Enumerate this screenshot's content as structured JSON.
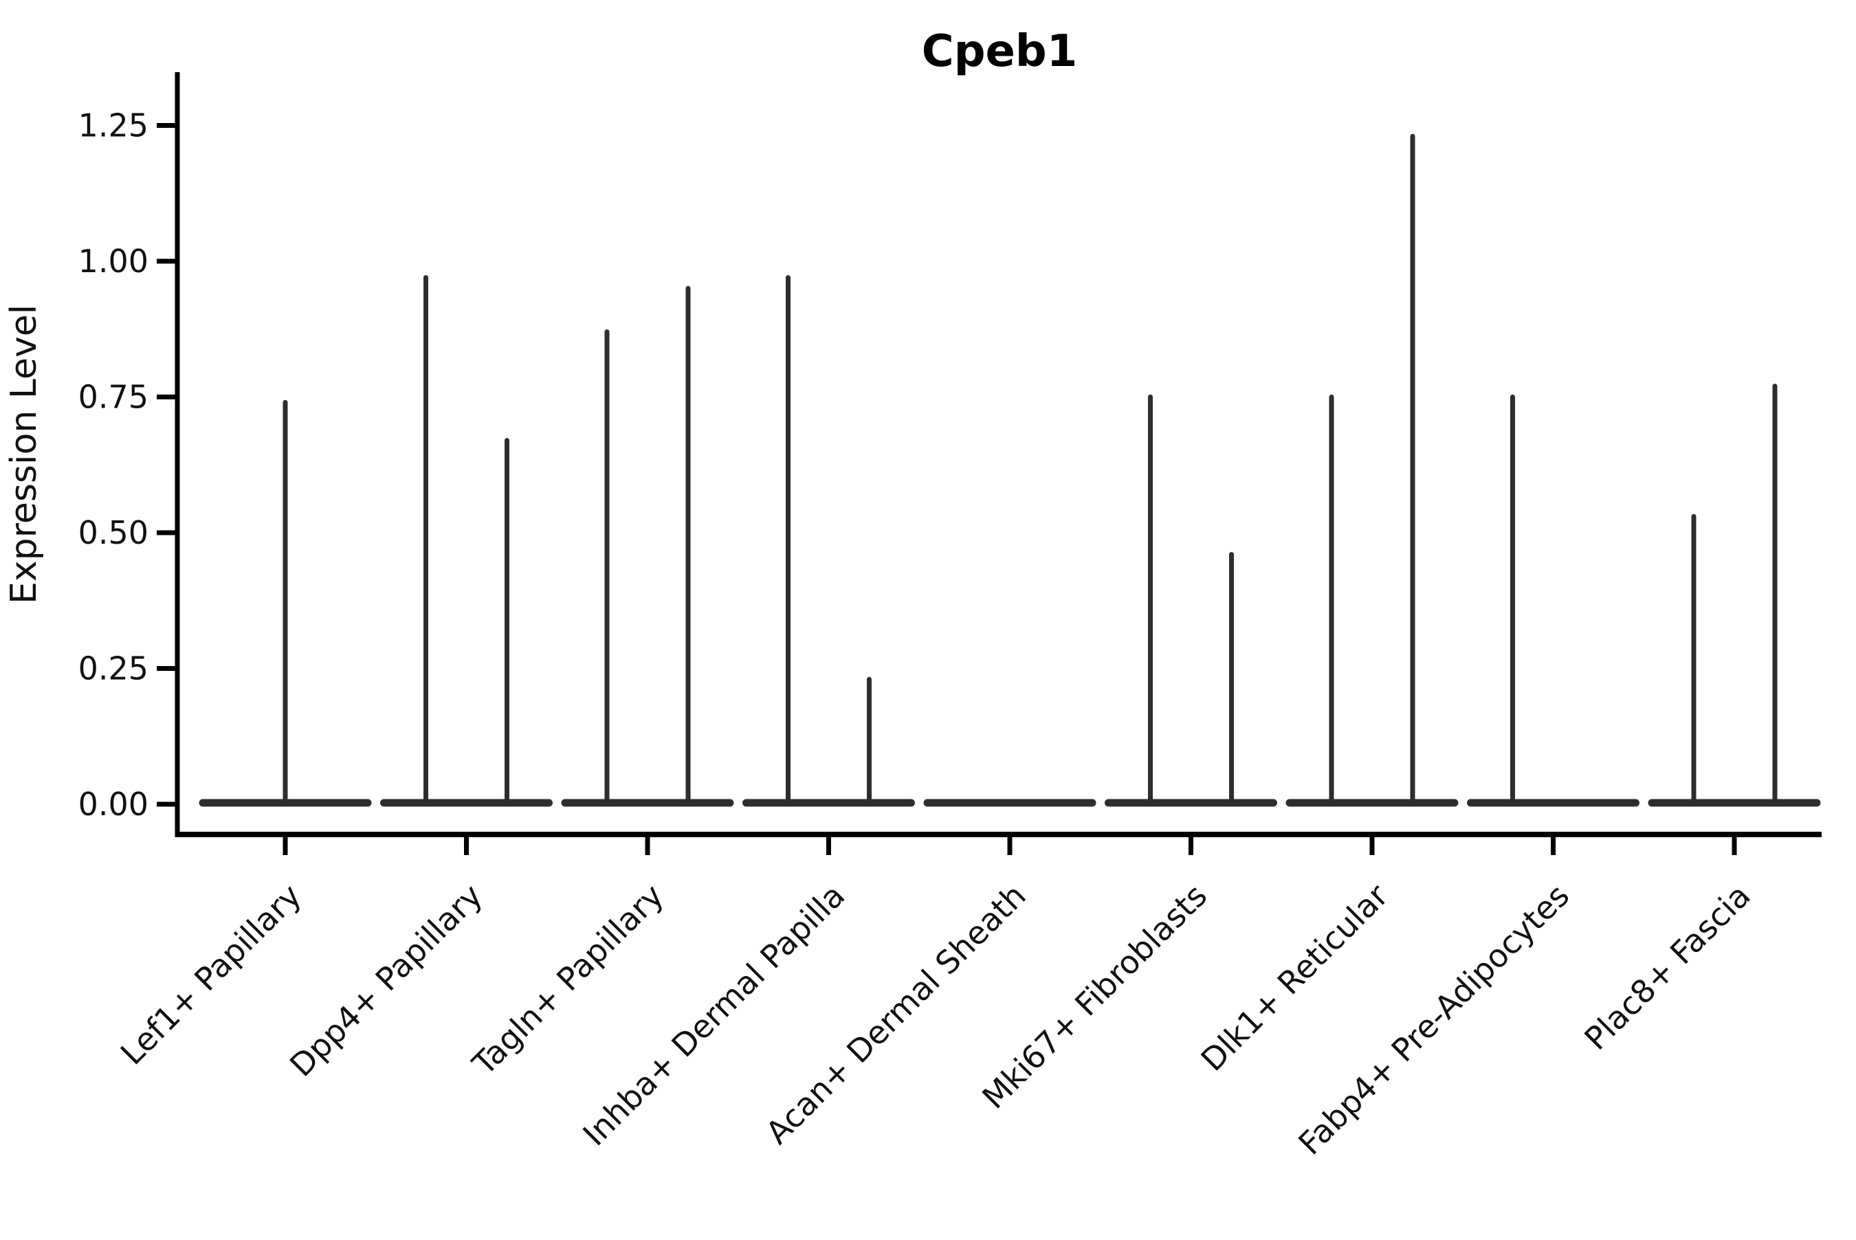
{
  "chart_data": {
    "type": "violin",
    "title": "Cpeb1",
    "xlabel": "",
    "ylabel": "Expression Level",
    "ylim": [
      -0.06,
      1.34
    ],
    "yticks": [
      0.0,
      0.25,
      0.5,
      0.75,
      1.0,
      1.25
    ],
    "ytick_labels": [
      "0.00",
      "0.25",
      "0.50",
      "0.75",
      "1.00",
      "1.25"
    ],
    "grid": false,
    "legend": "none",
    "style_note": "Seurat-style violin plot; nearly all cells at 0 so each violin collapses to a flat horizontal body at y=0 with a thin vertical spike reaching the maximum expression value; outline color dark gray, no fill visible",
    "categories": [
      "Lef1+ Papillary",
      "Dpp4+ Papillary",
      "Tagln+ Papillary",
      "Inhba+ Dermal Papilla",
      "Acan+ Dermal Sheath",
      "Mki67+ Fibroblasts",
      "Dlk1+ Reticular",
      "Fabp4+ Pre-Adipocytes",
      "Plac8+ Fascia"
    ],
    "violins": [
      {
        "category": "Lef1+ Papillary",
        "spikes": [
          {
            "side": "center",
            "max": 0.74
          }
        ]
      },
      {
        "category": "Dpp4+ Papillary",
        "spikes": [
          {
            "side": "left",
            "max": 0.97
          },
          {
            "side": "right",
            "max": 0.67
          }
        ]
      },
      {
        "category": "Tagln+ Papillary",
        "spikes": [
          {
            "side": "left",
            "max": 0.87
          },
          {
            "side": "right",
            "max": 0.95
          }
        ]
      },
      {
        "category": "Inhba+ Dermal Papilla",
        "spikes": [
          {
            "side": "left",
            "max": 0.97
          },
          {
            "side": "right",
            "max": 0.23
          }
        ]
      },
      {
        "category": "Acan+ Dermal Sheath",
        "spikes": []
      },
      {
        "category": "Mki67+ Fibroblasts",
        "spikes": [
          {
            "side": "left",
            "max": 0.75
          },
          {
            "side": "right",
            "max": 0.46
          }
        ]
      },
      {
        "category": "Dlk1+ Reticular",
        "spikes": [
          {
            "side": "left",
            "max": 0.75
          },
          {
            "side": "right",
            "max": 1.23
          }
        ]
      },
      {
        "category": "Fabp4+ Pre-Adipocytes",
        "spikes": [
          {
            "side": "left",
            "max": 0.75
          }
        ]
      },
      {
        "category": "Plac8+ Fascia",
        "spikes": [
          {
            "side": "left",
            "max": 0.53
          },
          {
            "side": "right",
            "max": 0.77
          }
        ]
      }
    ],
    "colors": {
      "violin_stroke": "#2e2e2e",
      "axis": "#000000",
      "text": "#111111",
      "background": "#ffffff"
    }
  }
}
